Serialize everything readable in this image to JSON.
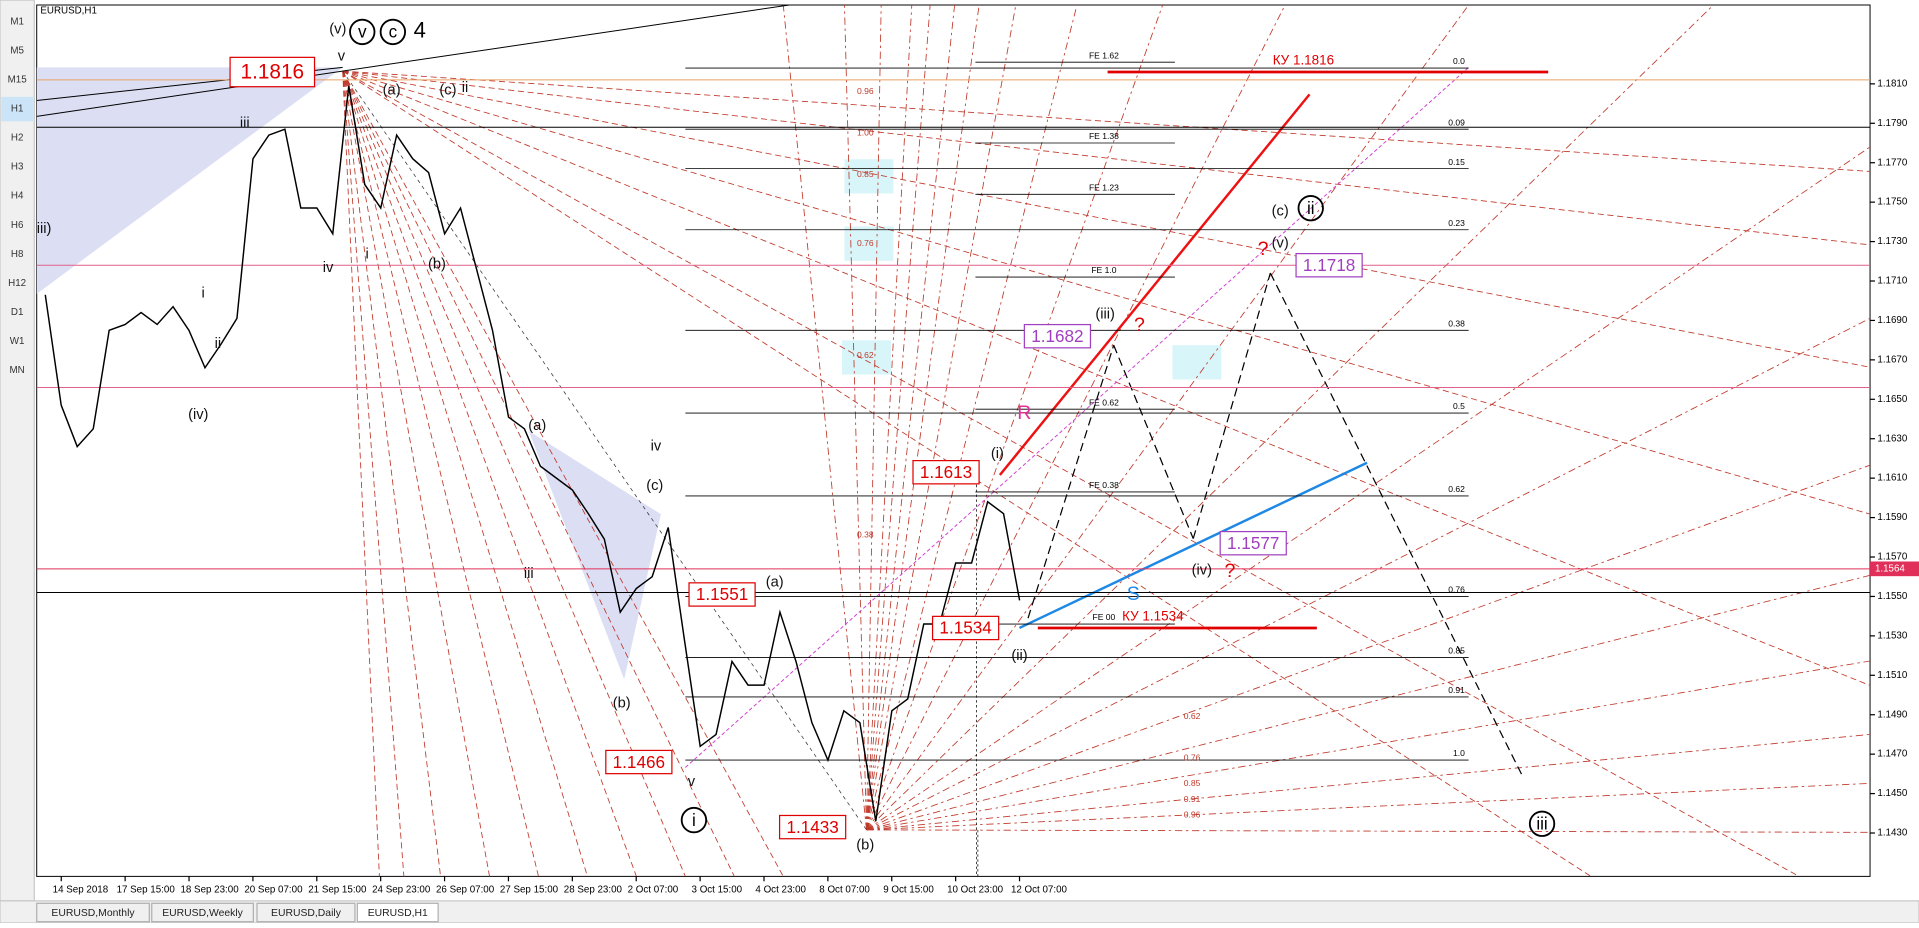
{
  "window": {
    "symbol_title": "EURUSD,H1",
    "timeframes": [
      "M1",
      "M5",
      "M15",
      "H1",
      "H2",
      "H3",
      "H4",
      "H6",
      "H8",
      "H12",
      "D1",
      "W1",
      "MN"
    ],
    "active_timeframe": "H1",
    "tabs": [
      "EURUSD,Monthly",
      "EURUSD,Weekly",
      "EURUSD,Daily",
      "EURUSD,H1"
    ],
    "active_tab": "EURUSD,H1"
  },
  "chart_data": {
    "type": "line",
    "color": "#000000",
    "categories": [
      null,
      "14 Sep 2018",
      null,
      null,
      null,
      "17 Sep 15:00",
      null,
      null,
      null,
      "18 Sep 23:00",
      null,
      null,
      null,
      "20 Sep 07:00",
      null,
      null,
      null,
      "21 Sep 15:00",
      null,
      null,
      null,
      "24 Sep 23:00",
      null,
      null,
      null,
      "26 Sep 07:00",
      null,
      null,
      null,
      "27 Sep 15:00",
      null,
      null,
      null,
      "28 Sep 23:00",
      null,
      null,
      null,
      "2 Oct 07:00",
      null,
      null,
      null,
      "3 Oct 15:00",
      null,
      null,
      null,
      "4 Oct 23:00",
      null,
      null,
      null,
      "8 Oct 07:00",
      null,
      null,
      null,
      "9 Oct 15:00",
      null,
      null,
      null,
      "10 Oct 23:00",
      null,
      null,
      null,
      "12 Oct 07:00"
    ],
    "values": [
      1.1703,
      1.1647,
      1.1626,
      1.1635,
      1.1685,
      1.1688,
      1.1694,
      1.1688,
      1.1697,
      1.1685,
      1.1666,
      1.1678,
      1.1691,
      1.1772,
      1.1784,
      1.1787,
      1.1747,
      1.1747,
      1.1734,
      1.1809,
      1.1759,
      1.1747,
      1.1784,
      1.1772,
      1.1765,
      1.1734,
      1.1747,
      1.1716,
      1.1685,
      1.1641,
      1.1635,
      1.1616,
      1.161,
      1.1604,
      1.1592,
      1.1579,
      1.1542,
      1.1554,
      1.156,
      1.1585,
      1.1529,
      1.1474,
      1.148,
      1.1517,
      1.1505,
      1.1505,
      1.1542,
      1.1517,
      1.1486,
      1.1467,
      1.1492,
      1.1486,
      1.1436,
      1.1492,
      1.1498,
      1.1536,
      1.1536,
      1.1567,
      1.1567,
      1.1598,
      1.1592,
      1.1548
    ],
    "ylim": [
      1.1408,
      1.185
    ],
    "yticks": [
      {
        "value": 1.143,
        "label": "1.1430"
      },
      {
        "value": 1.145,
        "label": "1.1450"
      },
      {
        "value": 1.147,
        "label": "1.1470"
      },
      {
        "value": 1.149,
        "label": "1.1490"
      },
      {
        "value": 1.151,
        "label": "1.1510"
      },
      {
        "value": 1.153,
        "label": "1.1530"
      },
      {
        "value": 1.155,
        "label": "1.1550"
      },
      {
        "value": 1.157,
        "label": "1.1570"
      },
      {
        "value": 1.159,
        "label": "1.1590"
      },
      {
        "value": 1.161,
        "label": "1.1610"
      },
      {
        "value": 1.163,
        "label": "1.1630"
      },
      {
        "value": 1.165,
        "label": "1.1650"
      },
      {
        "value": 1.167,
        "label": "1.1670"
      },
      {
        "value": 1.169,
        "label": "1.1690"
      },
      {
        "value": 1.171,
        "label": "1.1710"
      },
      {
        "value": 1.173,
        "label": "1.1730"
      },
      {
        "value": 1.175,
        "label": "1.1750"
      },
      {
        "value": 1.177,
        "label": "1.1770"
      },
      {
        "value": 1.179,
        "label": "1.1790"
      },
      {
        "value": 1.181,
        "label": "1.1810"
      }
    ],
    "current_price": 1.1564,
    "horizontal_lines": [
      {
        "price": 1.1812,
        "color": "#e8a060"
      },
      {
        "price": 1.1788,
        "color": "#000000"
      },
      {
        "price": 1.1718,
        "color": "#e0608a"
      },
      {
        "price": 1.1656,
        "color": "#e0608a"
      },
      {
        "price": 1.1564,
        "color": "#e0305a"
      },
      {
        "price": 1.1552,
        "color": "#000000"
      }
    ],
    "fib_levels": [
      {
        "label": "0.0",
        "price": 1.1818
      },
      {
        "label": "0.09",
        "price": 1.1787
      },
      {
        "label": "0.15",
        "price": 1.1767
      },
      {
        "label": "0.23",
        "price": 1.1736
      },
      {
        "label": "0.38",
        "price": 1.1685
      },
      {
        "label": "0.5",
        "price": 1.1643
      },
      {
        "label": "0.62",
        "price": 1.1601
      },
      {
        "label": "0.76",
        "price": 1.155
      },
      {
        "label": "0.85",
        "price": 1.1519
      },
      {
        "label": "0.91",
        "price": 1.1499
      },
      {
        "label": "1.0",
        "price": 1.1467
      }
    ],
    "fe_levels": [
      {
        "label": "FE 1.62",
        "price": 1.1821
      },
      {
        "label": "FE 1.38",
        "price": 1.178
      },
      {
        "label": "FE 1.23",
        "price": 1.1754
      },
      {
        "label": "FE 1.0",
        "price": 1.1712
      },
      {
        "label": "FE 0.62",
        "price": 1.1645
      },
      {
        "label": "FE 0.38",
        "price": 1.1603
      },
      {
        "label": "FE 00",
        "price": 1.1536
      }
    ],
    "retracement_labels": [
      {
        "label": "0.96",
        "price": 1.1806
      },
      {
        "label": "1.00",
        "price": 1.1785
      },
      {
        "label": "0.85",
        "price": 1.1764
      },
      {
        "label": "0.76",
        "price": 1.1729
      },
      {
        "label": "0.62",
        "price": 1.1672
      },
      {
        "label": "0.38",
        "price": 1.1581
      },
      {
        "label": "0.62",
        "price": 1.1489
      },
      {
        "label": "0.76",
        "price": 1.1468
      },
      {
        "label": "0.85",
        "price": 1.1455
      },
      {
        "label": "0.91",
        "price": 1.1447
      },
      {
        "label": "0.96",
        "price": 1.1439
      }
    ],
    "ku_levels": [
      {
        "label": "КУ 1.1816",
        "price": 1.1816
      },
      {
        "label": "КУ 1.1534",
        "price": 1.1534
      }
    ],
    "price_labels": [
      {
        "price": 1.1816,
        "color": "#e00000"
      },
      {
        "price": 1.1613,
        "color": "#e00000"
      },
      {
        "price": 1.1551,
        "color": "#e00000"
      },
      {
        "price": 1.1534,
        "color": "#e00000"
      },
      {
        "price": 1.1466,
        "color": "#e00000"
      },
      {
        "price": 1.1433,
        "color": "#e00000"
      },
      {
        "price": 1.1682,
        "color": "#a040c0"
      },
      {
        "price": 1.1718,
        "color": "#a040c0"
      },
      {
        "price": 1.1577,
        "color": "#a040c0"
      }
    ],
    "wave_labels": [
      "(v)",
      "v",
      "(a)",
      "(c)",
      "ii",
      "iii",
      "iv",
      "i",
      "(b)",
      "iii)",
      "i",
      "ii",
      "(iv)",
      "(a)",
      "iv",
      "(c)",
      "iii",
      "(b)",
      "(a)",
      "v",
      "(b)",
      "(i)",
      "(ii)",
      "(iii)",
      "(iv)",
      "(v)",
      "(c)"
    ],
    "circled_labels": [
      "v",
      "c",
      "i",
      "ii",
      "iii"
    ],
    "wave_degree": "4",
    "markers": [
      "?",
      "?",
      "?",
      "R",
      "S"
    ]
  }
}
